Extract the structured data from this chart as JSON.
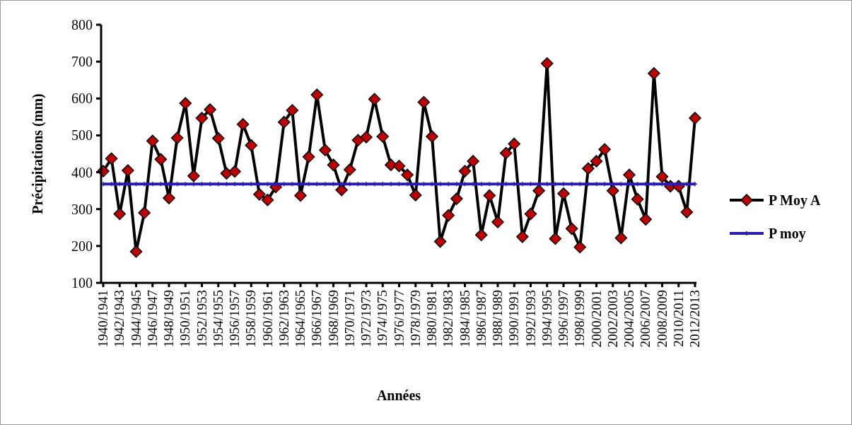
{
  "chart_data": {
    "type": "line",
    "xlabel": "Années",
    "ylabel": "Précipitations (mm)",
    "categories": [
      "1940/1941",
      null,
      "1942/1943",
      null,
      "1944/1945",
      null,
      "1946/1947",
      null,
      "1948/1949",
      null,
      "1950/1951",
      null,
      "1952/1953",
      null,
      "1954/1955",
      null,
      "1956/1957",
      null,
      "1958/1959",
      null,
      "1960/1961",
      null,
      "1962/1963",
      null,
      "1964/1965",
      null,
      "1966/1967",
      null,
      "1968/1969",
      null,
      "1970/1971",
      null,
      "1972/1973",
      null,
      "1974/1975",
      null,
      "1976/1977",
      null,
      "1978/1979",
      null,
      "1980/1981",
      null,
      "1982/1983",
      null,
      "1984/1985",
      null,
      "1986/1987",
      null,
      "1988/1989",
      null,
      "1990/1991",
      null,
      "1992/1993",
      null,
      "1994/1995",
      null,
      "1996/1997",
      null,
      "1998/1999",
      null,
      "2000/2001",
      null,
      "2002/2003",
      null,
      "2004/2005",
      null,
      "2006/2007",
      null,
      "2008/2009",
      null,
      "2010/2011",
      null,
      "2012/2013"
    ],
    "series": [
      {
        "name": "P Moy A",
        "color": "#c00000",
        "marker": "diamond",
        "values": [
          403,
          437,
          287,
          405,
          185,
          290,
          485,
          435,
          330,
          493,
          587,
          390,
          547,
          570,
          492,
          397,
          402,
          530,
          473,
          340,
          325,
          360,
          536,
          568,
          337,
          442,
          610,
          460,
          420,
          352,
          407,
          487,
          495,
          598,
          497,
          420,
          417,
          393,
          338,
          590,
          497,
          212,
          283,
          328,
          403,
          430,
          230,
          337,
          265,
          452,
          477,
          225,
          287,
          350,
          695,
          220,
          342,
          247,
          197,
          410,
          430,
          462,
          350,
          222,
          393,
          327,
          272,
          668,
          388,
          362,
          362,
          292,
          547
        ]
      },
      {
        "name": "P moy",
        "color": "#2a1bb5",
        "marker": "cross",
        "values": [
          368,
          368,
          368,
          368,
          368,
          368,
          368,
          368,
          368,
          368,
          368,
          368,
          368,
          368,
          368,
          368,
          368,
          368,
          368,
          368,
          368,
          368,
          368,
          368,
          368,
          368,
          368,
          368,
          368,
          368,
          368,
          368,
          368,
          368,
          368,
          368,
          368,
          368,
          368,
          368,
          368,
          368,
          368,
          368,
          368,
          368,
          368,
          368,
          368,
          368,
          368,
          368,
          368,
          368,
          368,
          368,
          368,
          368,
          368,
          368,
          368,
          368,
          368,
          368,
          368,
          368,
          368,
          368,
          368,
          368,
          368,
          368,
          368
        ]
      }
    ],
    "ylim": [
      100,
      800
    ],
    "yticks": [
      100,
      200,
      300,
      400,
      500,
      600,
      700,
      800
    ],
    "grid": false,
    "legend": "right"
  }
}
